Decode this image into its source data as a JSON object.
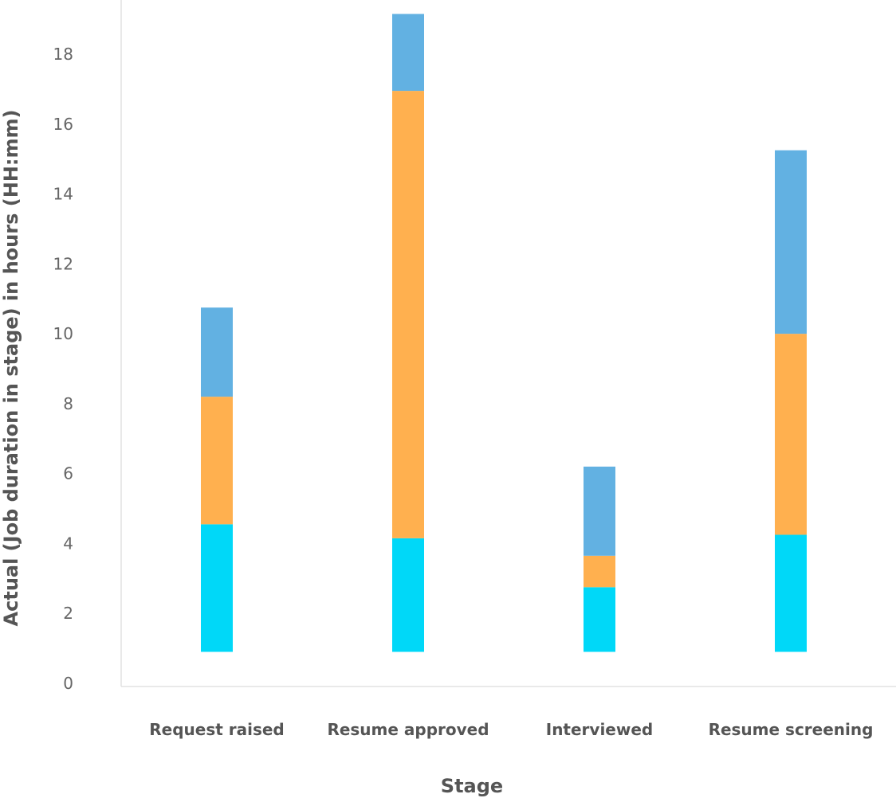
{
  "chart_data": {
    "type": "bar",
    "stacked": true,
    "title": "",
    "xlabel": "Stage",
    "ylabel": "Actual (Job duration in stage) in hours (HH:mm)",
    "ylim": [
      0,
      18
    ],
    "yticks": [
      0,
      2,
      4,
      6,
      8,
      10,
      12,
      14,
      16,
      18
    ],
    "grid": false,
    "legend": "none",
    "categories": [
      "Request raised",
      "Resume approved",
      "Interviewed",
      "Resume screening"
    ],
    "series": [
      {
        "color": "#00d8f8",
        "values": [
          3.65,
          3.25,
          1.85,
          3.35
        ]
      },
      {
        "color": "#ffb04f",
        "values": [
          3.65,
          12.8,
          0.9,
          5.75
        ]
      },
      {
        "color": "#62b1e2",
        "values": [
          2.55,
          2.2,
          2.55,
          5.25
        ]
      }
    ],
    "baseline": 0.9
  }
}
